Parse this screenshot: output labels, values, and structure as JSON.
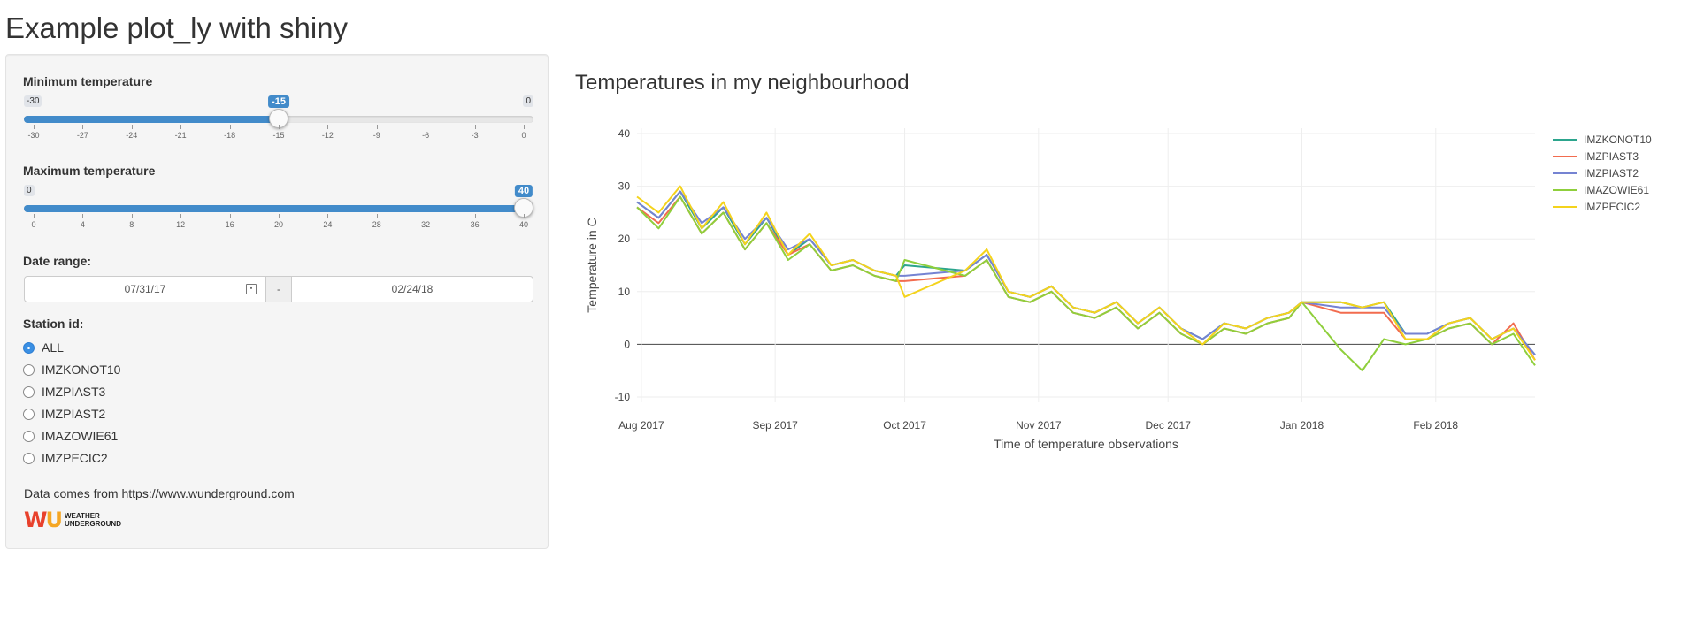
{
  "app": {
    "title": "Example plot_ly with shiny"
  },
  "sidebar": {
    "min_temp": {
      "label": "Minimum temperature",
      "min": -30,
      "max": 0,
      "value": -15,
      "min_label": "-30",
      "max_label": "0",
      "value_label": "-15",
      "ticks": [
        "-30",
        "-27",
        "-24",
        "-21",
        "-18",
        "-15",
        "-12",
        "-9",
        "-6",
        "-3",
        "0"
      ]
    },
    "max_temp": {
      "label": "Maximum temperature",
      "min": 0,
      "max": 40,
      "value": 40,
      "min_label": "0",
      "max_label": "40",
      "value_label": "40",
      "ticks": [
        "0",
        "4",
        "8",
        "12",
        "16",
        "20",
        "24",
        "28",
        "32",
        "36",
        "40"
      ]
    },
    "date_range": {
      "label": "Date range:",
      "start": "07/31/17",
      "separator": "-",
      "end": "02/24/18"
    },
    "station": {
      "label": "Station id:",
      "options": [
        "ALL",
        "IMZKONOT10",
        "IMZPIAST3",
        "IMZPIAST2",
        "IMAZOWIE61",
        "IMZPECIC2"
      ],
      "selected": "ALL"
    },
    "source_text": "Data comes from https://www.wunderground.com",
    "logo": {
      "mark": "WU",
      "line1": "WEATHER",
      "line2": "UNDERGROUND"
    }
  },
  "main": {
    "title": "Temperatures in my neighbourhood"
  },
  "chart_data": {
    "type": "line",
    "title": "",
    "xlabel": "Time of temperature observations",
    "ylabel": "Temperature in C",
    "x_ticks": [
      "Aug 2017",
      "Sep 2017",
      "Oct 2017",
      "Nov 2017",
      "Dec 2017",
      "Jan 2018",
      "Feb 2018"
    ],
    "y_ticks": [
      -10,
      0,
      10,
      20,
      30,
      40
    ],
    "ylim": [
      -11,
      41
    ],
    "xlim": [
      "2017-07-31",
      "2018-02-24"
    ],
    "legend_position": "right",
    "grid": true,
    "dates": [
      "2017-07-31",
      "2017-08-05",
      "2017-08-10",
      "2017-08-15",
      "2017-08-20",
      "2017-08-25",
      "2017-08-30",
      "2017-09-04",
      "2017-09-09",
      "2017-09-14",
      "2017-09-19",
      "2017-09-24",
      "2017-09-29",
      "2017-10-01",
      "2017-10-15",
      "2017-10-20",
      "2017-10-25",
      "2017-10-30",
      "2017-11-04",
      "2017-11-09",
      "2017-11-14",
      "2017-11-19",
      "2017-11-24",
      "2017-11-29",
      "2017-12-04",
      "2017-12-09",
      "2017-12-14",
      "2017-12-19",
      "2017-12-24",
      "2017-12-29",
      "2018-01-01",
      "2018-01-10",
      "2018-01-15",
      "2018-01-20",
      "2018-01-25",
      "2018-01-30",
      "2018-02-04",
      "2018-02-09",
      "2018-02-14",
      "2018-02-19",
      "2018-02-24"
    ],
    "series": [
      {
        "name": "IMZKONOT10",
        "color": "#2ca58d",
        "values": [
          27,
          24,
          29,
          22,
          26,
          19,
          24,
          17,
          20,
          15,
          16,
          14,
          13,
          15,
          14,
          17,
          10,
          9,
          11,
          7,
          6,
          8,
          4,
          7,
          3,
          1,
          4,
          3,
          5,
          6,
          8,
          8,
          7,
          8,
          2,
          2,
          4,
          5,
          1,
          3,
          -2
        ]
      },
      {
        "name": "IMZPIAST3",
        "color": "#f26c4f",
        "values": [
          26,
          23,
          28,
          21,
          25,
          18,
          23,
          17,
          19,
          14,
          15,
          13,
          12,
          12,
          13,
          16,
          9,
          8,
          10,
          6,
          5,
          7,
          3,
          6,
          2,
          0,
          3,
          2,
          4,
          5,
          8,
          6,
          6,
          6,
          1,
          1,
          3,
          4,
          0,
          4,
          -3
        ]
      },
      {
        "name": "IMZPIAST2",
        "color": "#7583d2",
        "values": [
          27,
          24,
          29,
          23,
          26,
          20,
          24,
          18,
          20,
          15,
          16,
          14,
          13,
          13,
          14,
          17,
          10,
          9,
          11,
          7,
          6,
          8,
          4,
          7,
          3,
          1,
          4,
          3,
          5,
          6,
          8,
          7,
          7,
          7,
          2,
          2,
          4,
          5,
          1,
          3,
          -2
        ]
      },
      {
        "name": "IMAZOWIE61",
        "color": "#8fcf3c",
        "values": [
          26,
          22,
          28,
          21,
          25,
          18,
          23,
          16,
          19,
          14,
          15,
          13,
          12,
          16,
          13,
          16,
          9,
          8,
          10,
          6,
          5,
          7,
          3,
          6,
          2,
          0,
          3,
          2,
          4,
          5,
          8,
          -1,
          -5,
          1,
          0,
          1,
          3,
          4,
          0,
          2,
          -4
        ]
      },
      {
        "name": "IMZPECIC2",
        "color": "#f4d31c",
        "values": [
          28,
          25,
          30,
          22,
          27,
          19,
          25,
          17,
          21,
          15,
          16,
          14,
          13,
          9,
          14,
          18,
          10,
          9,
          11,
          7,
          6,
          8,
          4,
          7,
          3,
          0,
          4,
          3,
          5,
          6,
          8,
          8,
          7,
          8,
          1,
          1,
          4,
          5,
          1,
          3,
          -3
        ]
      }
    ]
  }
}
